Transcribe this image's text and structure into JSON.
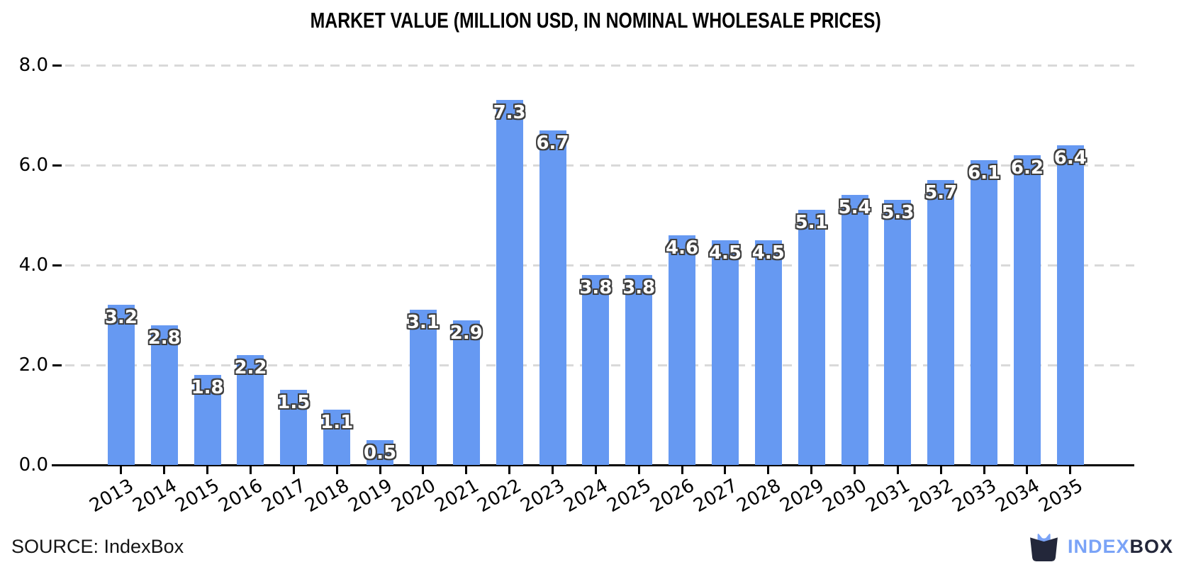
{
  "title": "MARKET VALUE (MILLION USD, IN NOMINAL WHOLESALE PRICES)",
  "source_label": "SOURCE: IndexBox",
  "logo": {
    "icon": "indexbox-box-cat-icon",
    "name_part1": "INDEX",
    "name_part2": "BOX"
  },
  "colors": {
    "bar": "#6699F2",
    "bar_label_fill": "#FFFFFF",
    "bar_label_outline": "#3F3F3F",
    "gridline": "#D9D9D9",
    "axis": "#000000",
    "title_text": "#000000",
    "logo_blue": "#7AA3F7",
    "logo_dark": "#23273A"
  },
  "chart_data": {
    "type": "bar",
    "title": "MARKET VALUE (MILLION USD, IN NOMINAL WHOLESALE PRICES)",
    "categories": [
      "2013",
      "2014",
      "2015",
      "2016",
      "2017",
      "2018",
      "2019",
      "2020",
      "2021",
      "2022",
      "2023",
      "2024",
      "2025",
      "2026",
      "2027",
      "2028",
      "2029",
      "2030",
      "2031",
      "2032",
      "2033",
      "2034",
      "2035"
    ],
    "values": [
      3.2,
      2.8,
      1.8,
      2.2,
      1.5,
      1.1,
      0.5,
      3.1,
      2.9,
      7.3,
      6.7,
      3.8,
      3.8,
      4.6,
      4.5,
      4.5,
      5.1,
      5.4,
      5.3,
      5.7,
      6.1,
      6.2,
      6.4
    ],
    "bar_labels": [
      "3.2",
      "2.8",
      "1.8",
      "2.2",
      "1.5",
      "1.1",
      "0.5",
      "3.1",
      "2.9",
      "7.3",
      "6.7",
      "3.8",
      "3.8",
      "4.6",
      "4.5",
      "4.5",
      "5.1",
      "5.4",
      "5.3",
      "5.7",
      "6.1",
      "6.2",
      "6.4"
    ],
    "xlabel": "",
    "ylabel": "",
    "ylim": [
      0,
      8
    ],
    "yticks": [
      "0.0",
      "2.0",
      "4.0",
      "6.0",
      "8.0"
    ],
    "grid": "horizontal-dashed",
    "legend_position": "none",
    "bar_label_position": "inside-top"
  }
}
